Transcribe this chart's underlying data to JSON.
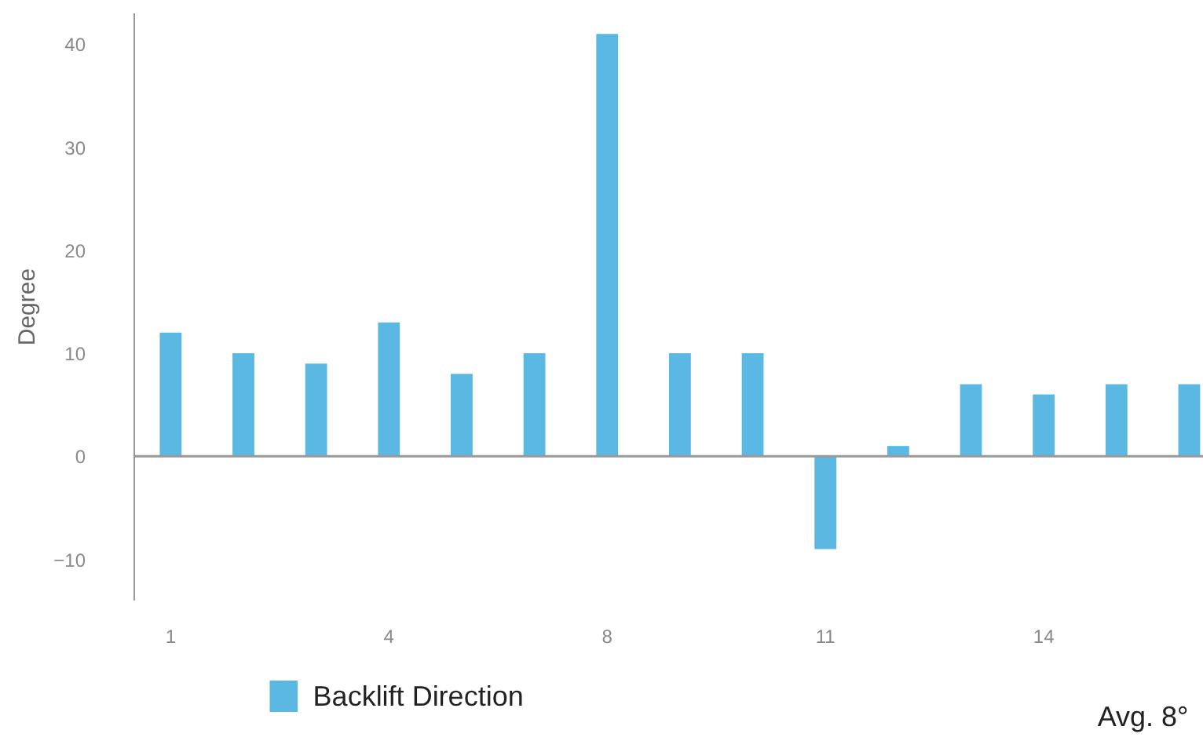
{
  "chart_data": {
    "type": "bar",
    "ylabel": "Degree",
    "categories": [
      "1",
      null,
      null,
      "4",
      null,
      null,
      "8",
      null,
      null,
      "11",
      null,
      null,
      "14",
      null,
      null
    ],
    "series": [
      {
        "name": "Backlift Direction",
        "color": "#5bb8e3",
        "values": [
          12,
          10,
          9,
          13,
          8,
          10,
          41,
          10,
          10,
          -9,
          1,
          7,
          6,
          7,
          7
        ]
      }
    ],
    "ylim": [
      -14,
      43
    ],
    "yticks": [
      -10,
      0,
      10,
      20,
      30,
      40
    ],
    "legend": "bottom left",
    "annotations": [
      "Avg. 8°"
    ]
  }
}
